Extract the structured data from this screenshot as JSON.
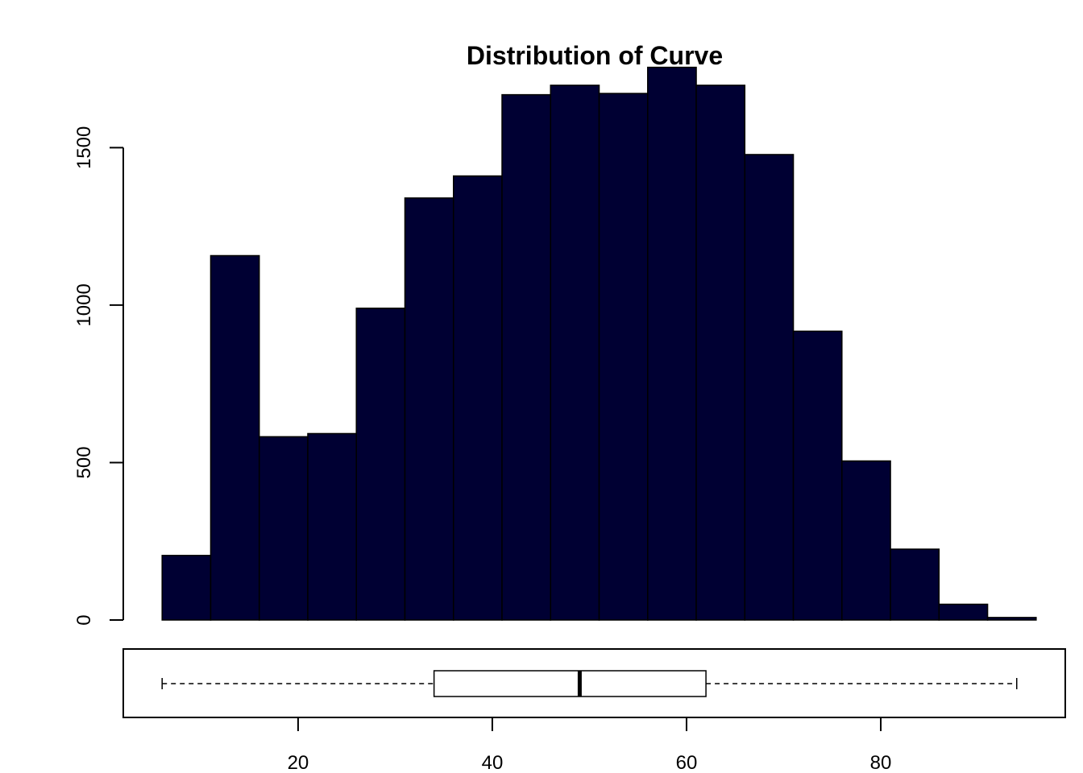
{
  "chart_data": [
    {
      "type": "histogram",
      "title": "Distribution of Curve",
      "xlabel": "",
      "ylabel": "",
      "bin_edges": [
        6,
        11,
        16,
        21,
        26,
        31,
        36,
        41,
        46,
        51,
        56,
        61,
        66,
        71,
        76,
        81,
        86,
        91,
        96
      ],
      "values": [
        205,
        1157,
        582,
        592,
        990,
        1340,
        1410,
        1668,
        1698,
        1672,
        1755,
        1698,
        1478,
        917,
        505,
        225,
        50,
        8
      ],
      "ylim": [
        0,
        1800
      ],
      "yticks": [
        "0",
        "500",
        "1000",
        "1500"
      ],
      "bar_color": "#000033",
      "edge_color": "#000000",
      "grid": false
    },
    {
      "type": "boxplot",
      "orientation": "horizontal",
      "min": 6,
      "q1": 34,
      "median": 49,
      "q3": 62,
      "max": 94,
      "xlim": [
        2,
        99
      ],
      "xticks": [
        "20",
        "40",
        "60",
        "80"
      ]
    }
  ]
}
